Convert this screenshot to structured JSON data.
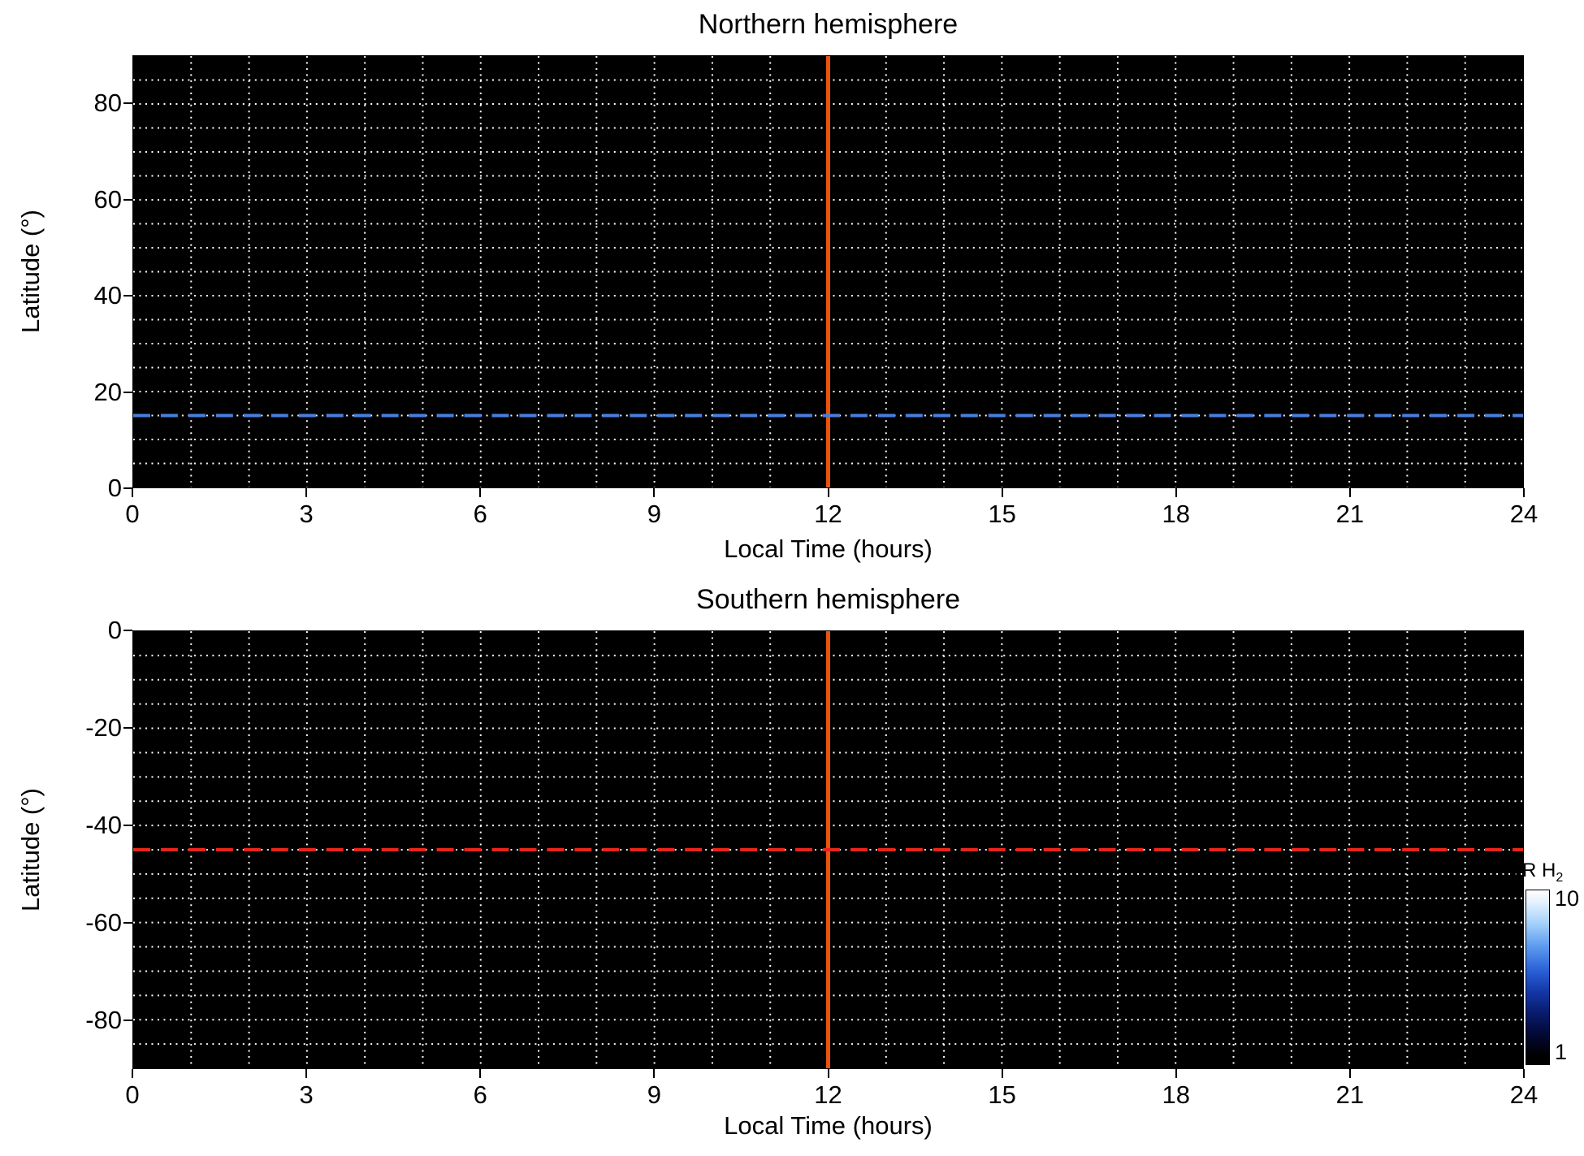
{
  "figure": {
    "background": "#ffffff"
  },
  "chart_data": {
    "type": "heatmap",
    "colormap": "blue (black at minimum through blue to white at maximum)",
    "panels": [
      {
        "title": "Northern hemisphere",
        "xlabel": "Local Time (hours)",
        "ylabel": "Latitude (°)",
        "xlim": [
          0,
          24
        ],
        "ylim": [
          0,
          90
        ],
        "xticks": [
          "0",
          "3",
          "6",
          "9",
          "12",
          "15",
          "18",
          "21",
          "24"
        ],
        "xtick_values": [
          0,
          3,
          6,
          9,
          12,
          15,
          18,
          21,
          24
        ],
        "yticks": [
          "0",
          "20",
          "40",
          "60",
          "80"
        ],
        "ytick_values": [
          0,
          20,
          40,
          60,
          80
        ],
        "x_minor_step": 1,
        "y_minor_step": 5,
        "grid": {
          "show": true,
          "color": "#ffffff",
          "style": "dotted"
        },
        "plot_background": "#000000",
        "values_summary": "uniform map at or below colorbar minimum (~1 kR H2); entire panel renders black, no emission features",
        "annotations": [
          {
            "kind": "vline",
            "x": 12,
            "color": "#e8540e",
            "style": "solid"
          },
          {
            "kind": "hline",
            "y": 15,
            "color": "#4a7ede",
            "style": "dashed"
          }
        ]
      },
      {
        "title": "Southern hemisphere",
        "xlabel": "Local Time (hours)",
        "ylabel": "Latitude (°)",
        "xlim": [
          0,
          24
        ],
        "ylim": [
          -90,
          0
        ],
        "xticks": [
          "0",
          "3",
          "6",
          "9",
          "12",
          "15",
          "18",
          "21",
          "24"
        ],
        "xtick_values": [
          0,
          3,
          6,
          9,
          12,
          15,
          18,
          21,
          24
        ],
        "yticks": [
          "0",
          "-20",
          "-40",
          "-60",
          "-80"
        ],
        "ytick_values": [
          0,
          -20,
          -40,
          -60,
          -80
        ],
        "x_minor_step": 1,
        "y_minor_step": 5,
        "grid": {
          "show": true,
          "color": "#ffffff",
          "style": "dotted"
        },
        "plot_background": "#000000",
        "values_summary": "uniform map at or below colorbar minimum (~1 kR H2); entire panel renders black, no emission features",
        "annotations": [
          {
            "kind": "vline",
            "x": 12,
            "color": "#e8540e",
            "style": "solid"
          },
          {
            "kind": "hline",
            "y": -45,
            "color": "#e6251c",
            "style": "dashed"
          }
        ]
      }
    ],
    "colorbar": {
      "label_main": "kR H",
      "label_sub": "2",
      "max_label": "10",
      "min_label": "1",
      "scale": "log",
      "stops": [
        [
          "#ffffff",
          0
        ],
        [
          "#e8f4ff",
          6
        ],
        [
          "#aad4fb",
          18
        ],
        [
          "#5e9cf0",
          32
        ],
        [
          "#2a60d8",
          46
        ],
        [
          "#1438a8",
          58
        ],
        [
          "#081c70",
          70
        ],
        [
          "#030a38",
          82
        ],
        [
          "#000000",
          95
        ],
        [
          "#000000",
          100
        ]
      ]
    }
  }
}
